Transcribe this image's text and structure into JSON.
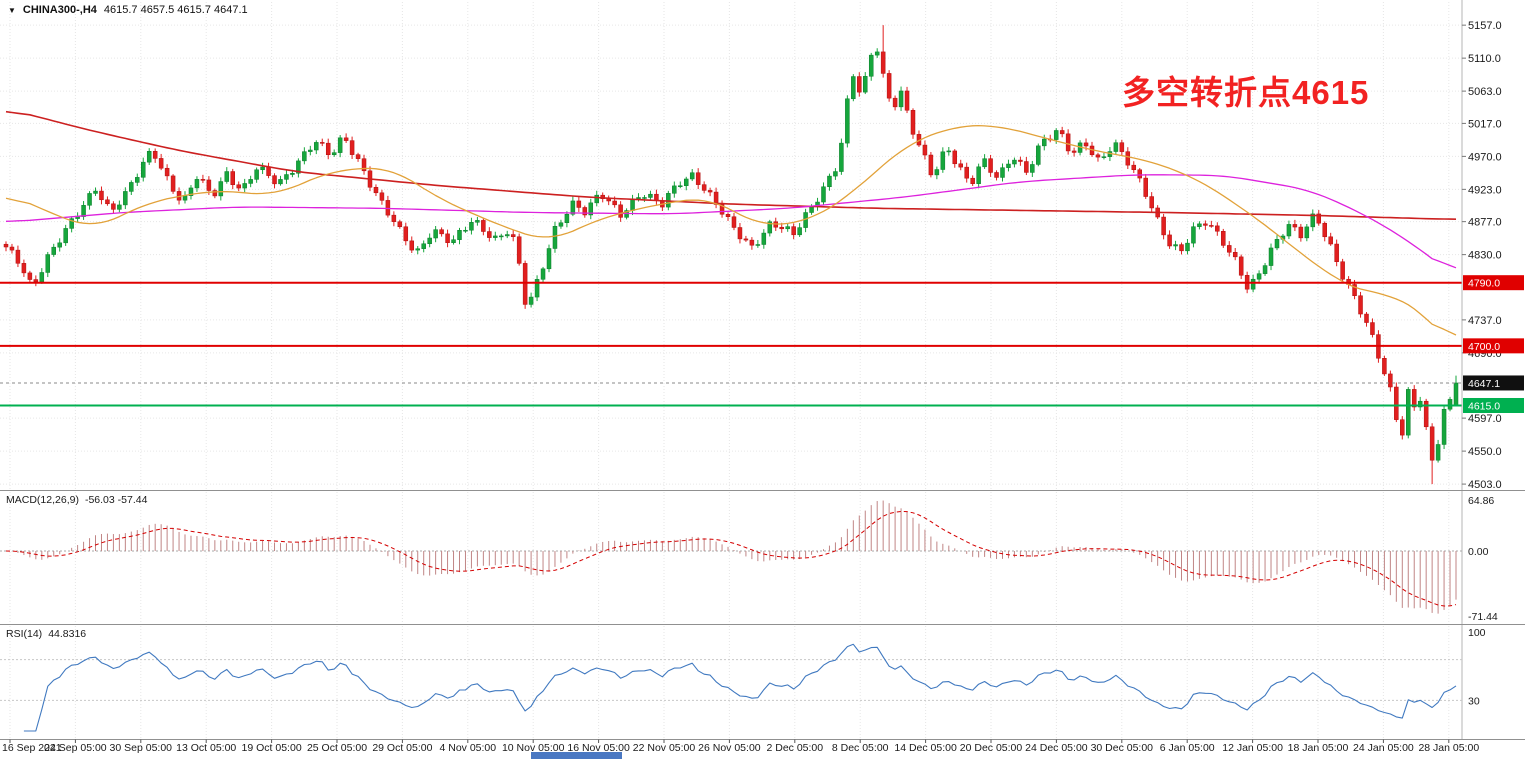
{
  "header": {
    "dropdown_icon": "▼",
    "symbol": "CHINA300-,H4",
    "ohlc": "4615.7 4657.5 4615.7 4647.1"
  },
  "annotation": {
    "text": "多空转折点4615",
    "color": "#f22222"
  },
  "indicators": {
    "macd": {
      "label": "MACD(12,26,9)",
      "values": "-56.03 -57.44",
      "axis_labels": [
        "64.86",
        "0.00",
        "-71.44"
      ]
    },
    "rsi": {
      "label": "RSI(14)",
      "value": "44.8316",
      "axis_labels": [
        "100",
        "30"
      ]
    }
  },
  "footer": {
    "artifact_color": "#4a78c2"
  },
  "chart_data": {
    "type": "candlestick",
    "symbol": "CHINA300-",
    "timeframe": "H4",
    "last_candle_ohlc": {
      "open": 4615.7,
      "high": 4657.5,
      "low": 4615.7,
      "close": 4647.1
    },
    "price_extremes": {
      "high": 5157.0,
      "low": 4503.0
    },
    "x_labels": [
      "16 Sep 2021",
      "24 Sep 05:00",
      "30 Sep 05:00",
      "13 Oct 05:00",
      "19 Oct 05:00",
      "25 Oct 05:00",
      "29 Oct 05:00",
      "4 Nov 05:00",
      "10 Nov 05:00",
      "16 Nov 05:00",
      "22 Nov 05:00",
      "26 Nov 05:00",
      "2 Dec 05:00",
      "8 Dec 05:00",
      "14 Dec 05:00",
      "20 Dec 05:00",
      "24 Dec 05:00",
      "30 Dec 05:00",
      "6 Jan 05:00",
      "12 Jan 05:00",
      "18 Jan 05:00",
      "24 Jan 05:00",
      "28 Jan 05:00"
    ],
    "y_ticks": [
      5157.0,
      5110.0,
      5063.0,
      5017.0,
      4970.0,
      4923.0,
      4877.0,
      4830.0,
      4737.0,
      4690.0,
      4597.0,
      4550.0,
      4503.0
    ],
    "y_range": [
      4496,
      5190
    ],
    "levels": [
      {
        "price": 4790.0,
        "label": "4790.0",
        "color": "#e00000",
        "badge": "#e00000",
        "style": "solid",
        "width": 2
      },
      {
        "price": 4700.0,
        "label": "4700.0",
        "color": "#e00000",
        "badge": "#e00000",
        "style": "solid",
        "width": 2
      },
      {
        "price": 4647.1,
        "label": "4647.1",
        "color": "#8a8a8a",
        "badge": "#101010",
        "style": "dash",
        "width": 1
      },
      {
        "price": 4615.0,
        "label": "4615.0",
        "color": "#00b050",
        "badge": "#00b050",
        "style": "solid",
        "width": 2
      }
    ],
    "candle_count": 244,
    "noise_amp": 5.5,
    "close_keyframes": [
      [
        0,
        4838
      ],
      [
        0.01,
        4818
      ],
      [
        0.018,
        4786
      ],
      [
        0.028,
        4824
      ],
      [
        0.04,
        4858
      ],
      [
        0.052,
        4896
      ],
      [
        0.062,
        4928
      ],
      [
        0.072,
        4892
      ],
      [
        0.082,
        4912
      ],
      [
        0.092,
        4948
      ],
      [
        0.101,
        4982
      ],
      [
        0.11,
        4944
      ],
      [
        0.122,
        4902
      ],
      [
        0.132,
        4940
      ],
      [
        0.142,
        4912
      ],
      [
        0.152,
        4948
      ],
      [
        0.163,
        4922
      ],
      [
        0.173,
        4952
      ],
      [
        0.188,
        4930
      ],
      [
        0.202,
        4966
      ],
      [
        0.213,
        4992
      ],
      [
        0.224,
        4968
      ],
      [
        0.233,
        4998
      ],
      [
        0.244,
        4962
      ],
      [
        0.258,
        4906
      ],
      [
        0.272,
        4860
      ],
      [
        0.283,
        4832
      ],
      [
        0.294,
        4868
      ],
      [
        0.308,
        4846
      ],
      [
        0.322,
        4878
      ],
      [
        0.338,
        4854
      ],
      [
        0.348,
        4868
      ],
      [
        0.355,
        4802
      ],
      [
        0.359,
        4748
      ],
      [
        0.368,
        4798
      ],
      [
        0.378,
        4866
      ],
      [
        0.39,
        4904
      ],
      [
        0.4,
        4888
      ],
      [
        0.41,
        4916
      ],
      [
        0.424,
        4890
      ],
      [
        0.438,
        4918
      ],
      [
        0.452,
        4898
      ],
      [
        0.464,
        4934
      ],
      [
        0.474,
        4946
      ],
      [
        0.488,
        4906
      ],
      [
        0.5,
        4870
      ],
      [
        0.514,
        4842
      ],
      [
        0.528,
        4876
      ],
      [
        0.543,
        4856
      ],
      [
        0.554,
        4894
      ],
      [
        0.564,
        4928
      ],
      [
        0.573,
        4958
      ],
      [
        0.578,
        5006
      ],
      [
        0.583,
        5092
      ],
      [
        0.589,
        5058
      ],
      [
        0.594,
        5084
      ],
      [
        0.599,
        5142
      ],
      [
        0.605,
        5086
      ],
      [
        0.611,
        5040
      ],
      [
        0.617,
        5064
      ],
      [
        0.624,
        5012
      ],
      [
        0.631,
        4976
      ],
      [
        0.639,
        4940
      ],
      [
        0.649,
        4986
      ],
      [
        0.657,
        4958
      ],
      [
        0.665,
        4930
      ],
      [
        0.674,
        4962
      ],
      [
        0.684,
        4936
      ],
      [
        0.694,
        4974
      ],
      [
        0.704,
        4950
      ],
      [
        0.714,
        4988
      ],
      [
        0.726,
        5004
      ],
      [
        0.735,
        4974
      ],
      [
        0.744,
        4994
      ],
      [
        0.754,
        4962
      ],
      [
        0.764,
        4986
      ],
      [
        0.774,
        4960
      ],
      [
        0.784,
        4930
      ],
      [
        0.794,
        4882
      ],
      [
        0.802,
        4846
      ],
      [
        0.81,
        4830
      ],
      [
        0.819,
        4864
      ],
      [
        0.828,
        4880
      ],
      [
        0.838,
        4856
      ],
      [
        0.848,
        4820
      ],
      [
        0.857,
        4776
      ],
      [
        0.864,
        4800
      ],
      [
        0.874,
        4844
      ],
      [
        0.884,
        4876
      ],
      [
        0.893,
        4858
      ],
      [
        0.903,
        4884
      ],
      [
        0.913,
        4842
      ],
      [
        0.922,
        4802
      ],
      [
        0.931,
        4768
      ],
      [
        0.941,
        4718
      ],
      [
        0.949,
        4668
      ],
      [
        0.956,
        4626
      ],
      [
        0.962,
        4564
      ],
      [
        0.967,
        4636
      ],
      [
        0.972,
        4612
      ],
      [
        0.977,
        4638
      ],
      [
        0.982,
        4524
      ],
      [
        0.987,
        4556
      ],
      [
        0.992,
        4608
      ],
      [
        0.996,
        4616
      ],
      [
        1,
        4647
      ]
    ],
    "colors": {
      "up": "#16a63c",
      "up_border": "#0b7d2b",
      "down": "#e11f1f",
      "down_border": "#b00e0e",
      "grid": "#e6e6e6",
      "axis_text": "#1a1a1a",
      "separator": "#909090"
    },
    "moving_averages": [
      {
        "name": "ma-slow",
        "color": "#cc2020",
        "width": 1.6,
        "keyframes": [
          [
            0,
            5038
          ],
          [
            0.06,
            5006
          ],
          [
            0.12,
            4978
          ],
          [
            0.2,
            4948
          ],
          [
            0.3,
            4928
          ],
          [
            0.4,
            4912
          ],
          [
            0.5,
            4902
          ],
          [
            0.6,
            4896
          ],
          [
            0.7,
            4893
          ],
          [
            0.8,
            4890
          ],
          [
            0.9,
            4886
          ],
          [
            1,
            4880
          ]
        ]
      },
      {
        "name": "ma-medium",
        "color": "#dd22dd",
        "width": 1.3,
        "keyframes": [
          [
            0,
            4876
          ],
          [
            0.08,
            4890
          ],
          [
            0.16,
            4898
          ],
          [
            0.26,
            4896
          ],
          [
            0.36,
            4890
          ],
          [
            0.46,
            4888
          ],
          [
            0.54,
            4896
          ],
          [
            0.62,
            4912
          ],
          [
            0.7,
            4934
          ],
          [
            0.78,
            4944
          ],
          [
            0.84,
            4943
          ],
          [
            0.9,
            4922
          ],
          [
            0.94,
            4884
          ],
          [
            0.97,
            4846
          ],
          [
            1,
            4798
          ]
        ]
      },
      {
        "name": "ma-fast",
        "color": "#e2a23a",
        "width": 1.3,
        "keyframes": [
          [
            0,
            4918
          ],
          [
            0.03,
            4890
          ],
          [
            0.06,
            4866
          ],
          [
            0.1,
            4906
          ],
          [
            0.145,
            4922
          ],
          [
            0.185,
            4914
          ],
          [
            0.225,
            4950
          ],
          [
            0.265,
            4955
          ],
          [
            0.3,
            4908
          ],
          [
            0.345,
            4868
          ],
          [
            0.375,
            4848
          ],
          [
            0.41,
            4882
          ],
          [
            0.45,
            4902
          ],
          [
            0.485,
            4912
          ],
          [
            0.52,
            4870
          ],
          [
            0.555,
            4878
          ],
          [
            0.585,
            4920
          ],
          [
            0.62,
            4986
          ],
          [
            0.655,
            5014
          ],
          [
            0.685,
            5014
          ],
          [
            0.72,
            4994
          ],
          [
            0.755,
            4976
          ],
          [
            0.785,
            4966
          ],
          [
            0.82,
            4940
          ],
          [
            0.85,
            4900
          ],
          [
            0.875,
            4862
          ],
          [
            0.9,
            4820
          ],
          [
            0.92,
            4792
          ],
          [
            0.94,
            4772
          ],
          [
            0.955,
            4778
          ],
          [
            0.97,
            4756
          ],
          [
            0.985,
            4730
          ],
          [
            1,
            4698
          ]
        ]
      }
    ],
    "macd": {
      "fast": 12,
      "slow": 26,
      "signal": 9,
      "main_current": -56.03,
      "signal_current": -57.44,
      "axis_max": 64.86,
      "axis_min": -71.44,
      "hist_color": "#c08585",
      "signal_color": "#d40000"
    },
    "rsi": {
      "period": 14,
      "current": 44.8316,
      "color": "#4079c0",
      "range": [
        0,
        100
      ],
      "levels": [
        70,
        30
      ]
    }
  }
}
